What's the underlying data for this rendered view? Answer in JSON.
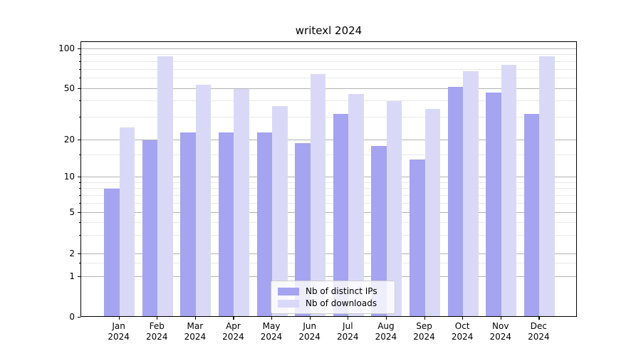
{
  "chart_data": {
    "type": "bar",
    "title": "writexl 2024",
    "categories": [
      "Jan 2024",
      "Feb 2024",
      "Mar 2024",
      "Apr 2024",
      "May 2024",
      "Jun 2024",
      "Jul 2024",
      "Aug 2024",
      "Sep 2024",
      "Oct 2024",
      "Nov 2024",
      "Dec 2024"
    ],
    "series": [
      {
        "name": "Nb of distinct IPs",
        "color": "#a4a4f0",
        "values": [
          8,
          20,
          23,
          23,
          23,
          19,
          32,
          18,
          14,
          52,
          47,
          32
        ]
      },
      {
        "name": "Nb of downloads",
        "color": "#d9d9f7",
        "values": [
          25,
          88,
          54,
          50,
          37,
          65,
          46,
          40,
          35,
          68,
          76,
          88
        ]
      }
    ],
    "xlabel": "",
    "ylabel": "",
    "y_axis": {
      "scale": "log-like",
      "major_ticks": [
        0,
        1,
        2,
        5,
        10,
        20,
        50,
        100
      ],
      "minor_ticks": [
        1.5,
        3,
        4,
        6,
        7,
        8,
        9,
        15,
        30,
        40,
        60,
        70,
        80,
        90
      ],
      "ylim": [
        0,
        113
      ]
    },
    "legend": {
      "entries": [
        "Nb of distinct IPs",
        "Nb of downloads"
      ],
      "position": "lower center"
    },
    "grid": true,
    "colors": {
      "major_grid": "#b2b2b2",
      "minor_grid": "#e8e8e8",
      "axis": "#000000",
      "background": "#ffffff",
      "text": "#000000"
    }
  }
}
